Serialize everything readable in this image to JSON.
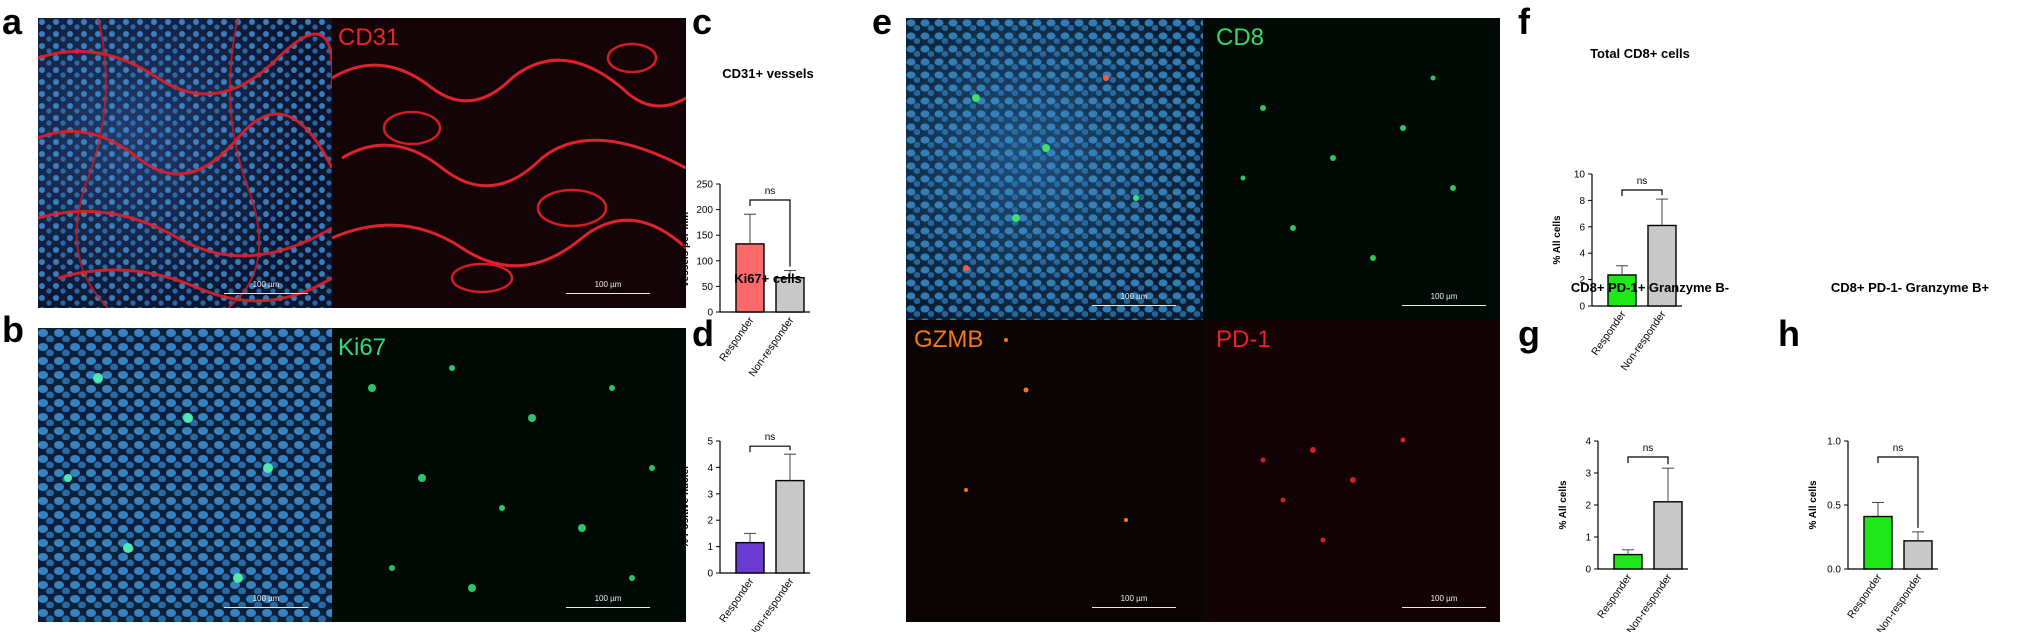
{
  "panels": {
    "a": {
      "letter": "a",
      "stain": "CD31",
      "scale": "100 µm",
      "scale2": "100 µm"
    },
    "b": {
      "letter": "b",
      "stain": "Ki67",
      "scale": "100 µm",
      "scale2": "100 µm"
    },
    "c": {
      "letter": "c"
    },
    "d": {
      "letter": "d"
    },
    "e": {
      "letter": "e",
      "stain_top": "CD8",
      "stain_bl": "GZMB",
      "stain_br": "PD-1",
      "scale_tl": "100 µm",
      "scale_tr": "100 µm",
      "scale_bl": "100 µm",
      "scale_br": "100 µm"
    },
    "f": {
      "letter": "f"
    },
    "g": {
      "letter": "g"
    },
    "h": {
      "letter": "h"
    }
  },
  "colors": {
    "nuclei_blue": "#2e7fc2",
    "cd31_red": "#d81f26",
    "ki67_green": "#2fd37a",
    "cd8_green": "#33d36a",
    "gzmb_orange": "#f07a1a",
    "pd1_red": "#e5232b",
    "bar_red": "#fb6a6a",
    "bar_purple": "#6a3bd1",
    "bar_green": "#1fe81a",
    "bar_grey": "#c8c8c8"
  },
  "chart_data": [
    {
      "id": "c",
      "type": "bar",
      "title": "CD31+ vessels",
      "ylabel": "Vessels per mm²",
      "categories": [
        "Responder",
        "Non-responder"
      ],
      "values": [
        133,
        67
      ],
      "errors": [
        58,
        14
      ],
      "bar_colors": [
        "#fb6a6a",
        "#c8c8c8"
      ],
      "ylim": [
        0,
        250
      ],
      "yticks": [
        0,
        50,
        100,
        150,
        200,
        250
      ],
      "ytick_labels": [
        "0",
        "50",
        "100",
        "150",
        "200",
        "250"
      ],
      "significance": "ns"
    },
    {
      "id": "d",
      "type": "bar",
      "title": "Ki67+ cells",
      "ylabel": "% Positive nuclei",
      "categories": [
        "Responder",
        "Non-responder"
      ],
      "values": [
        1.15,
        3.5
      ],
      "errors": [
        0.35,
        1.0
      ],
      "bar_colors": [
        "#6a3bd1",
        "#c8c8c8"
      ],
      "ylim": [
        0,
        5
      ],
      "yticks": [
        0,
        1,
        2,
        3,
        4,
        5
      ],
      "ytick_labels": [
        "0",
        "1",
        "2",
        "3",
        "4",
        "5"
      ],
      "significance": "ns"
    },
    {
      "id": "f",
      "type": "bar",
      "title": "Total CD8+ cells",
      "ylabel": "% All cells",
      "categories": [
        "Responder",
        "Non-responder"
      ],
      "values": [
        2.35,
        6.1
      ],
      "errors": [
        0.7,
        2.0
      ],
      "bar_colors": [
        "#1fe81a",
        "#c8c8c8"
      ],
      "ylim": [
        0,
        10
      ],
      "yticks": [
        0,
        2,
        4,
        6,
        8,
        10
      ],
      "ytick_labels": [
        "0",
        "2",
        "4",
        "6",
        "8",
        "10"
      ],
      "significance": "ns"
    },
    {
      "id": "g",
      "type": "bar",
      "title": "CD8+ PD-1+ Granzyme B-",
      "ylabel": "% All cells",
      "categories": [
        "Responder",
        "Non-responder"
      ],
      "values": [
        0.45,
        2.1
      ],
      "errors": [
        0.15,
        1.05
      ],
      "bar_colors": [
        "#1fe81a",
        "#c8c8c8"
      ],
      "ylim": [
        0,
        4
      ],
      "yticks": [
        0,
        1,
        2,
        3,
        4
      ],
      "ytick_labels": [
        "0",
        "1",
        "2",
        "3",
        "4"
      ],
      "significance": "ns"
    },
    {
      "id": "h",
      "type": "bar",
      "title": "CD8+ PD-1- Granzyme B+",
      "ylabel": "% All cells",
      "categories": [
        "Responder",
        "Non-responder"
      ],
      "values": [
        0.41,
        0.22
      ],
      "errors": [
        0.11,
        0.07
      ],
      "bar_colors": [
        "#1fe81a",
        "#c8c8c8"
      ],
      "ylim": [
        0,
        1
      ],
      "yticks": [
        0,
        0.5,
        1
      ],
      "ytick_labels": [
        "0.0",
        "0.5",
        "1.0"
      ],
      "significance": "ns"
    }
  ]
}
